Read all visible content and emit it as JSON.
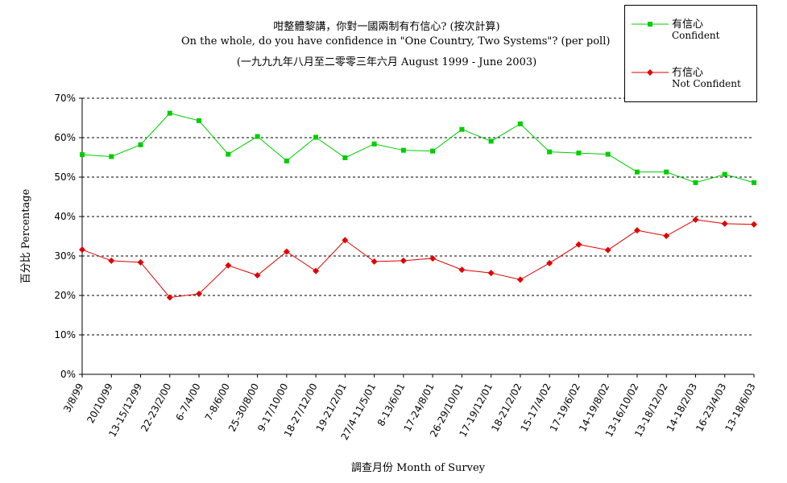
{
  "title": {
    "line1": "咁整體黎講，你對一國兩制有冇信心? (按次計算)",
    "line2": "On the whole, do you have confidence in \"One Country, Two Systems\"? (per poll)",
    "line3": "(一九九九年八月至二零零三年六月 August 1999 - June 2003)"
  },
  "legend": {
    "confident_zh": "有信心",
    "confident_en": "Confident",
    "not_confident_zh": "冇信心",
    "not_confident_en": "Not Confident"
  },
  "colors": {
    "confident": "#00cc00",
    "not_confident": "#e00000"
  },
  "chart_data": {
    "type": "line",
    "title": "On the whole, do you have confidence in \"One Country, Two Systems\"? (per poll)",
    "xlabel": "調查月份 Month of Survey",
    "ylabel": "百分比 Percentage",
    "ylim": [
      0,
      70
    ],
    "yticks": [
      0,
      10,
      20,
      30,
      40,
      50,
      60,
      70
    ],
    "ytick_labels": [
      "0%",
      "10%",
      "20%",
      "30%",
      "40%",
      "50%",
      "60%",
      "70%"
    ],
    "grid": "horizontal dashed",
    "legend_position": "top-right",
    "categories": [
      "3/8/99",
      "20/10/99",
      "13-15/12/99",
      "22-23/2/00",
      "6-7/4/00",
      "7-8/6/00",
      "25-30/8/00",
      "9-17/10/00",
      "18-27/12/00",
      "19-21/2/01",
      "27/4-11/5/01",
      "8-13/6/01",
      "17-24/8/01",
      "26-29/10/01",
      "17-19/12/01",
      "18-21/2/02",
      "15-17/4/02",
      "17-19/6/02",
      "14-19/8/02",
      "13-16/10/02",
      "13-18/12/02",
      "14-18/2/03",
      "16-23/4/03",
      "13-18/6/03"
    ],
    "series": [
      {
        "name": "有信心 Confident",
        "values": [
          55.7,
          55.2,
          58.2,
          66.2,
          64.3,
          55.8,
          60.3,
          54.1,
          60.1,
          54.9,
          58.4,
          56.8,
          56.6,
          62.1,
          59.1,
          63.5,
          56.4,
          56.1,
          55.8,
          51.3,
          51.3,
          48.6,
          50.7,
          48.6
        ]
      },
      {
        "name": "冇信心 Not Confident",
        "values": [
          31.6,
          28.8,
          28.4,
          19.5,
          20.4,
          27.6,
          25.1,
          31.1,
          26.2,
          34.0,
          28.6,
          28.8,
          29.4,
          26.5,
          25.7,
          24.0,
          28.2,
          32.9,
          31.5,
          36.5,
          35.1,
          39.2,
          38.2,
          38.0
        ]
      }
    ]
  }
}
